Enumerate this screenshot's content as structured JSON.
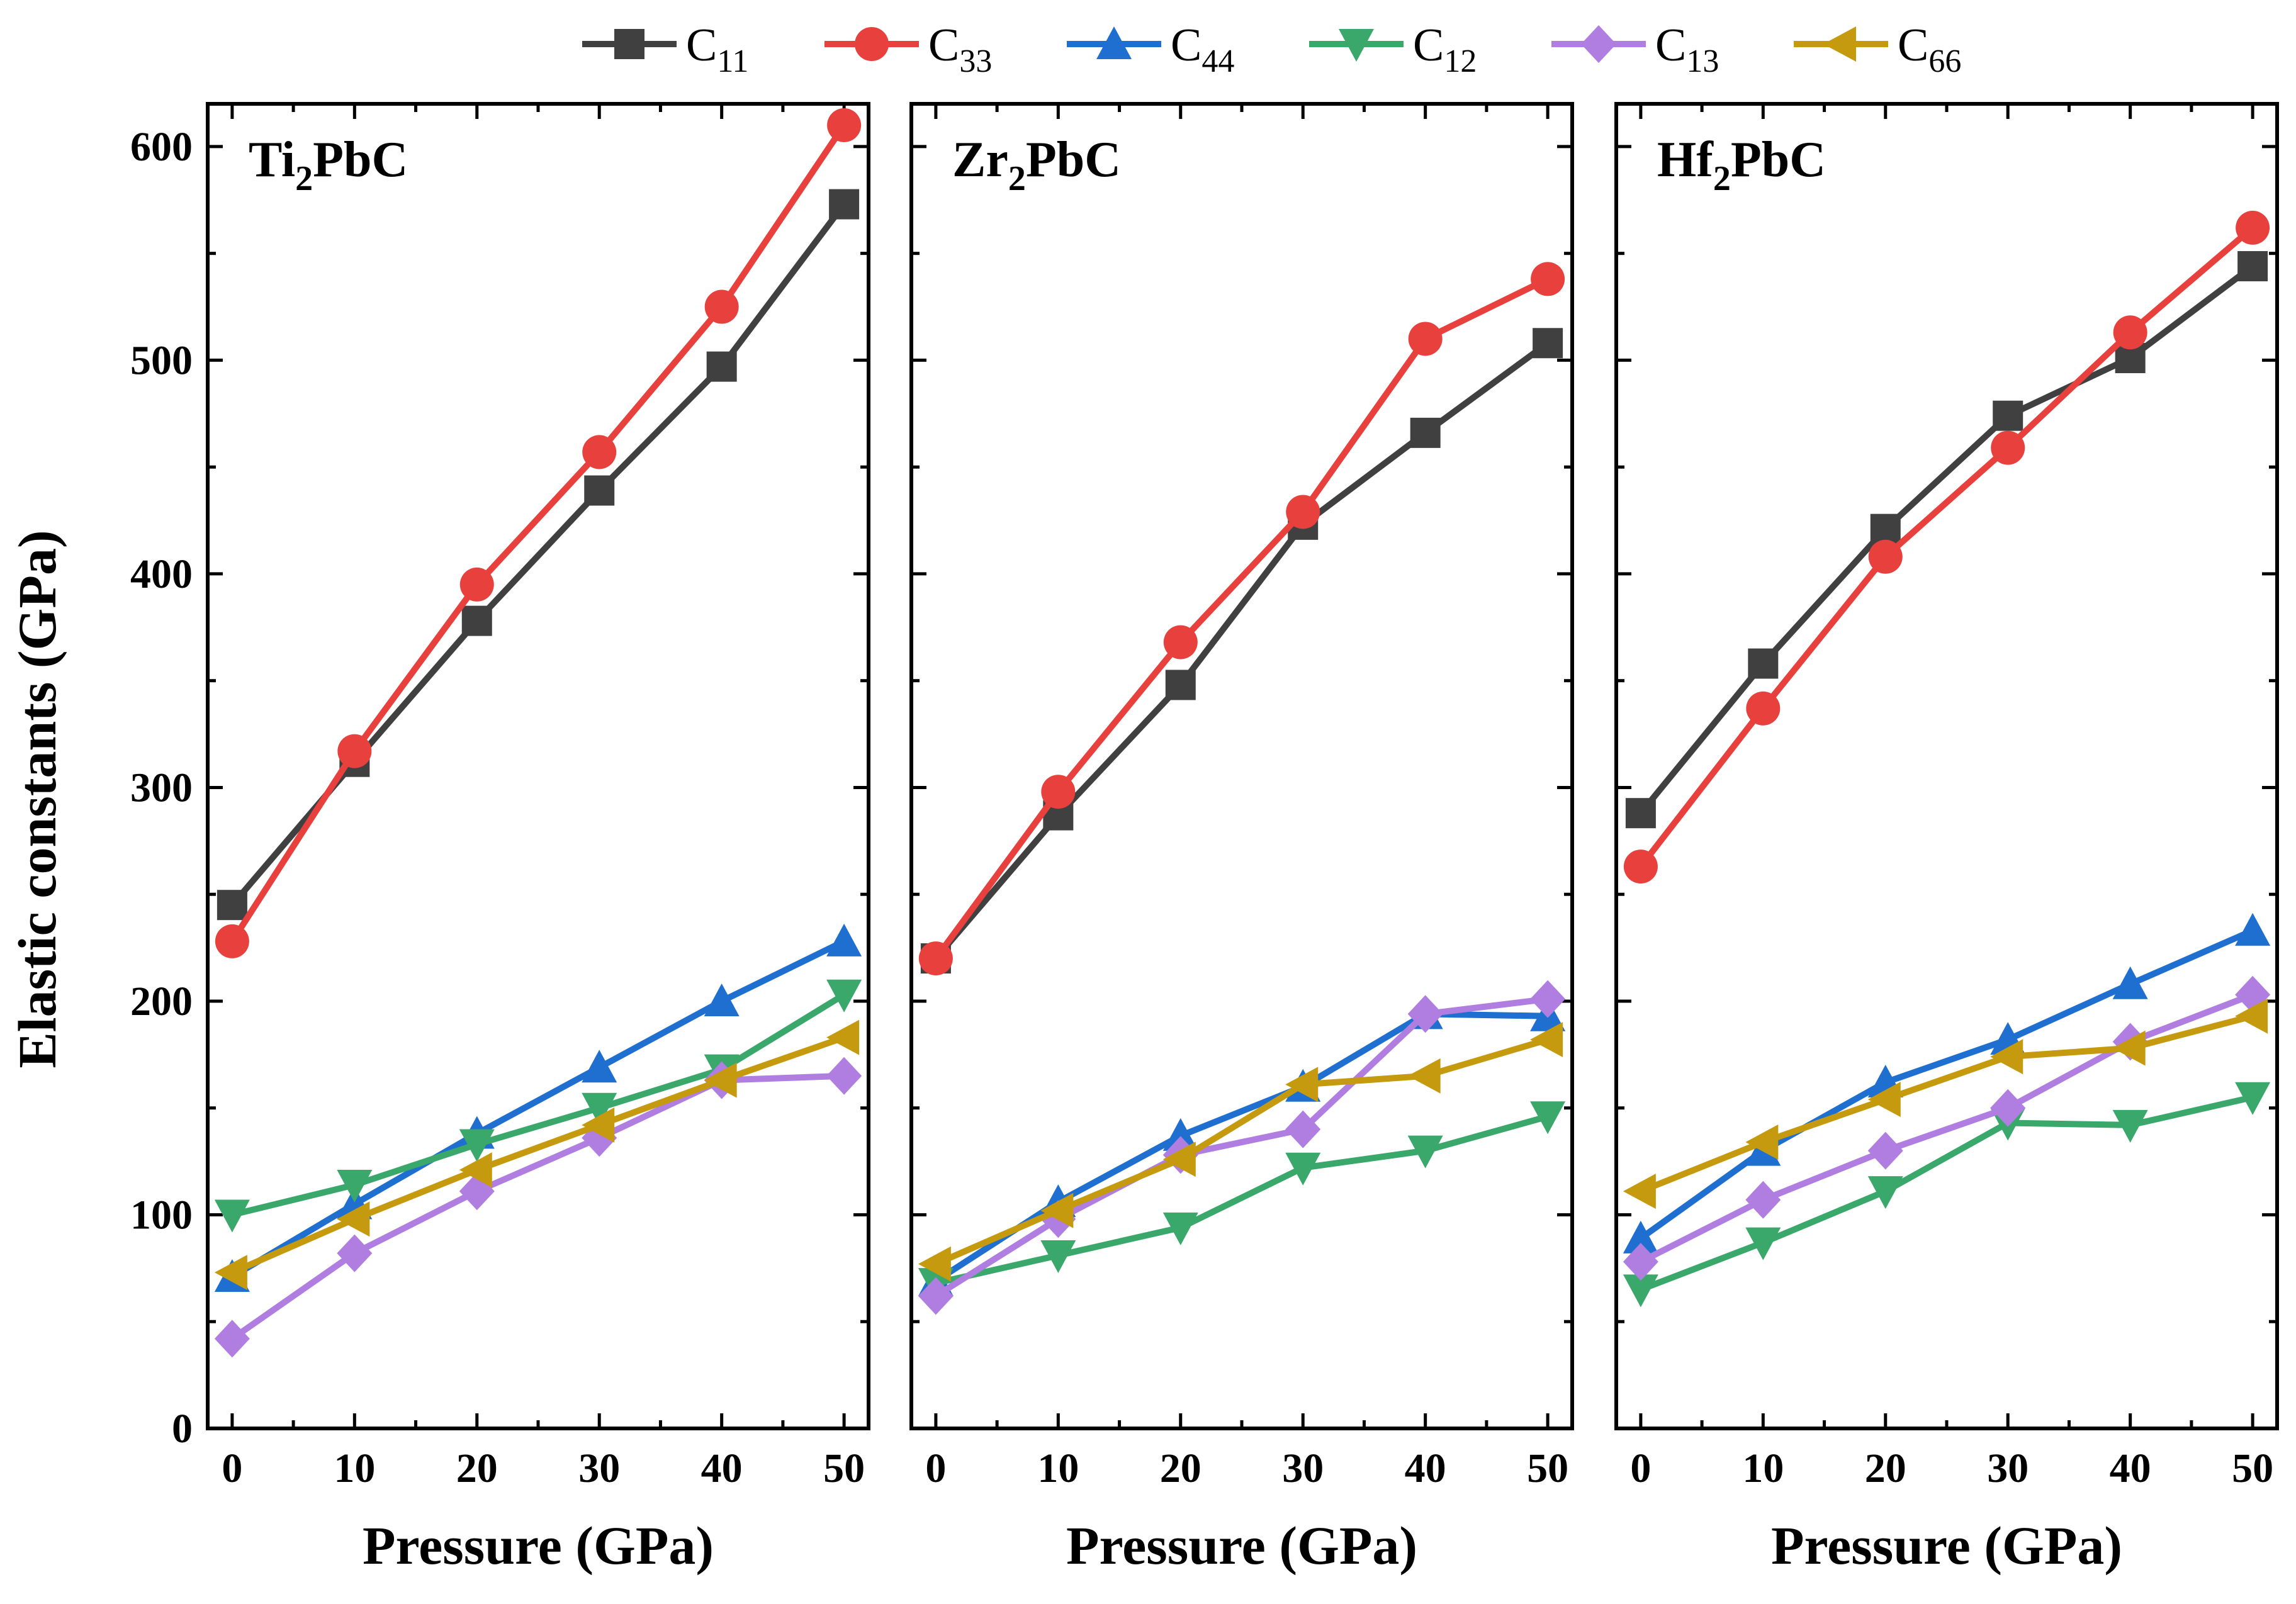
{
  "chart_data": {
    "type": "line",
    "ylabel": "Elastic constants (GPa)",
    "xlabel": "Pressure (GPa)",
    "xlim": [
      -2,
      52
    ],
    "ylim": [
      0,
      620
    ],
    "xticks": [
      "0",
      "10",
      "20",
      "30",
      "40",
      "50"
    ],
    "yticks": [
      "0",
      "100",
      "200",
      "300",
      "400",
      "500",
      "600"
    ],
    "x": [
      0,
      10,
      20,
      30,
      40,
      50
    ],
    "legend": [
      {
        "key": "C11",
        "base": "C",
        "sub": "11",
        "color": "#404040",
        "marker": "square"
      },
      {
        "key": "C33",
        "base": "C",
        "sub": "33",
        "color": "#e8403d",
        "marker": "circle"
      },
      {
        "key": "C44",
        "base": "C",
        "sub": "44",
        "color": "#1f6fd1",
        "marker": "triangle-up"
      },
      {
        "key": "C12",
        "base": "C",
        "sub": "12",
        "color": "#3aa76b",
        "marker": "triangle-down"
      },
      {
        "key": "C13",
        "base": "C",
        "sub": "13",
        "color": "#b07de0",
        "marker": "diamond"
      },
      {
        "key": "C66",
        "base": "C",
        "sub": "66",
        "color": "#c59a0e",
        "marker": "triangle-left"
      }
    ],
    "panels": [
      {
        "compound": "Ti2PbC",
        "title_main": "Ti",
        "title_sub": "2",
        "title_rest": "PbC",
        "series": {
          "C11": [
            245,
            312,
            378,
            439,
            497,
            573
          ],
          "C33": [
            228,
            317,
            395,
            457,
            525,
            610
          ],
          "C44": [
            71,
            105,
            138,
            169,
            200,
            228
          ],
          "C12": [
            100,
            114,
            133,
            150,
            168,
            203
          ],
          "C13": [
            42,
            82,
            111,
            136,
            163,
            165
          ],
          "C66": [
            73,
            98,
            121,
            142,
            163,
            183
          ]
        }
      },
      {
        "compound": "Zr2PbC",
        "title_main": "Zr",
        "title_sub": "2",
        "title_rest": "PbC",
        "series": {
          "C11": [
            220,
            287,
            348,
            423,
            466,
            508
          ],
          "C33": [
            220,
            298,
            368,
            429,
            510,
            538
          ],
          "C44": [
            69,
            106,
            137,
            160,
            194,
            193
          ],
          "C12": [
            68,
            81,
            94,
            122,
            130,
            146
          ],
          "C13": [
            62,
            98,
            128,
            140,
            194,
            201
          ],
          "C66": [
            77,
            102,
            126,
            161,
            165,
            182
          ]
        }
      },
      {
        "compound": "Hf2PbC",
        "title_main": "Hf",
        "title_sub": "2",
        "title_rest": "PbC",
        "series": {
          "C11": [
            288,
            358,
            421,
            474,
            501,
            544
          ],
          "C33": [
            263,
            337,
            408,
            459,
            513,
            562
          ],
          "C44": [
            89,
            130,
            162,
            182,
            208,
            233
          ],
          "C12": [
            65,
            87,
            111,
            143,
            142,
            155
          ],
          "C13": [
            78,
            107,
            130,
            150,
            181,
            203
          ],
          "C66": [
            111,
            134,
            154,
            174,
            178,
            193
          ]
        }
      }
    ]
  }
}
